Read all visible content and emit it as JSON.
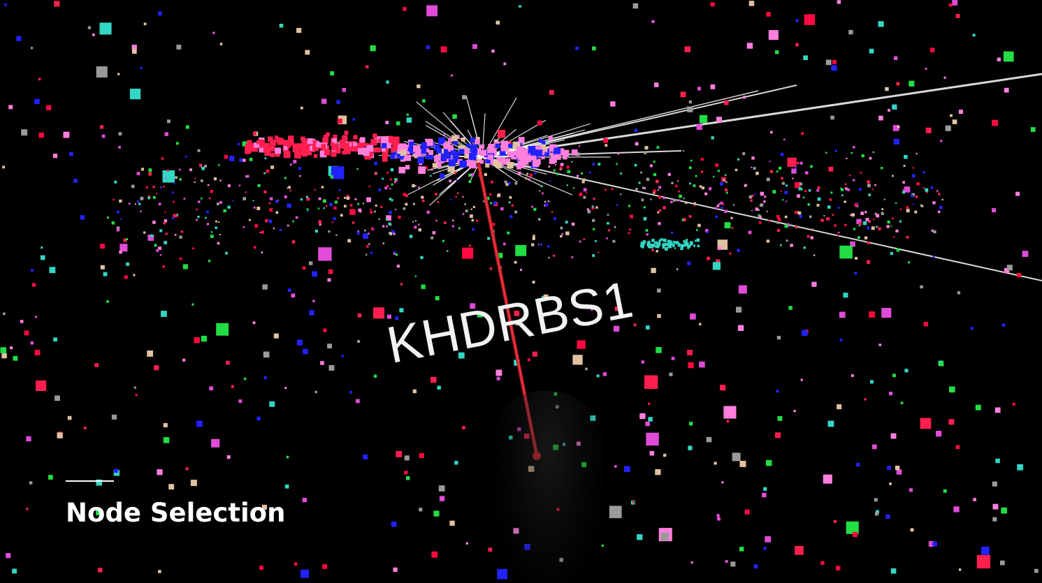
{
  "scene": {
    "background": "#000000",
    "node_palette": [
      "#ff1f4f",
      "#ff7fdd",
      "#2222ff",
      "#33d6c4",
      "#e0c2a0",
      "#9a9a9a",
      "#22dd44",
      "#ff0a40",
      "#e04cd8"
    ],
    "edge_color": "#ffffff",
    "pointer_color": "#e8212e"
  },
  "selected_node": {
    "label": "KHDRBS1"
  },
  "caption": {
    "title": "Node Selection"
  }
}
